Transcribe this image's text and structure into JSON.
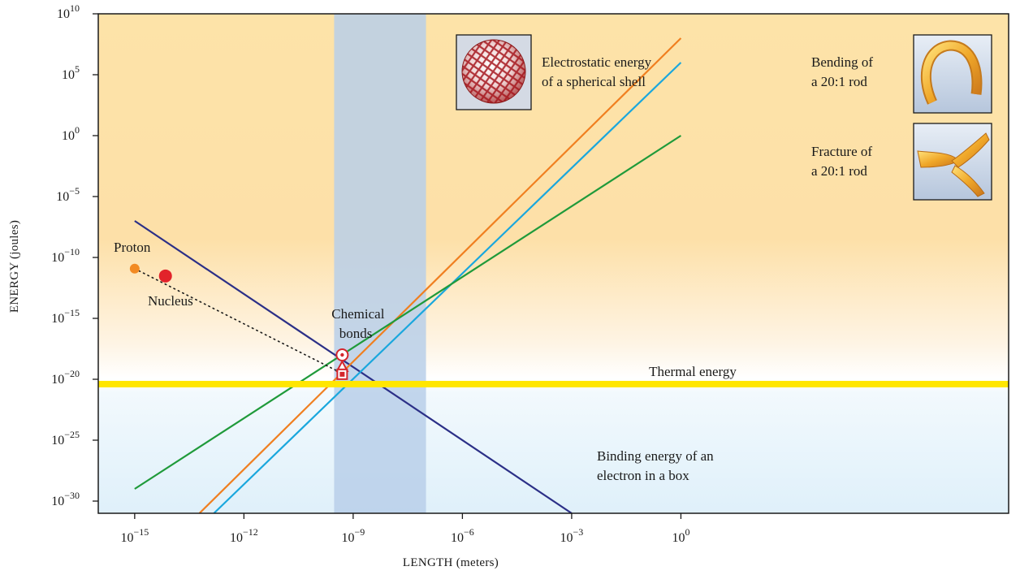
{
  "chart_data": {
    "type": "line",
    "xlabel": "LENGTH (meters)",
    "ylabel": "ENERGY (joules)",
    "x_scale": "log",
    "y_scale": "log",
    "xlim": [
      1e-16,
      1000000000.0
    ],
    "ylim": [
      1e-31,
      10000000000.0
    ],
    "x_ticks": [
      {
        "value": 1e-15,
        "base": "10",
        "exp": "−15"
      },
      {
        "value": 1e-12,
        "base": "10",
        "exp": "−12"
      },
      {
        "value": 1e-09,
        "base": "10",
        "exp": "−9"
      },
      {
        "value": 1e-06,
        "base": "10",
        "exp": "−6"
      },
      {
        "value": 0.001,
        "base": "10",
        "exp": "−3"
      },
      {
        "value": 1,
        "base": "10",
        "exp": "0"
      }
    ],
    "y_ticks": [
      {
        "value": 10000000000.0,
        "base": "10",
        "exp": "10"
      },
      {
        "value": 100000.0,
        "base": "10",
        "exp": "5"
      },
      {
        "value": 1,
        "base": "10",
        "exp": "0"
      },
      {
        "value": 1e-05,
        "base": "10",
        "exp": "−5"
      },
      {
        "value": 1e-10,
        "base": "10",
        "exp": "−10"
      },
      {
        "value": 1e-15,
        "base": "10",
        "exp": "−15"
      },
      {
        "value": 1e-20,
        "base": "10",
        "exp": "−20"
      },
      {
        "value": 1e-25,
        "base": "10",
        "exp": "−25"
      },
      {
        "value": 1e-30,
        "base": "10",
        "exp": "−30"
      }
    ],
    "series": [
      {
        "key": "binding",
        "color": "#2b2f87",
        "x": [
          1e-15,
          0.001
        ],
        "y": [
          1e-07,
          1e-31
        ]
      },
      {
        "key": "electrostatic",
        "color": "#f07f20",
        "x": [
          6e-14,
          1
        ],
        "y": [
          1e-31,
          100000000.0
        ]
      },
      {
        "key": "bending",
        "color": "#1aa7dd",
        "x": [
          1.5e-13,
          1
        ],
        "y": [
          1e-31,
          1000000.0
        ]
      },
      {
        "key": "fracture",
        "color": "#1f9a3a",
        "x": [
          1e-15,
          1
        ],
        "y": [
          1e-29,
          1.0
        ]
      }
    ],
    "thermal_energy": {
      "y": 4e-21,
      "color": "#ffe600",
      "label": "Thermal energy"
    },
    "chemical_band": {
      "x": [
        3e-10,
        1e-07
      ],
      "color": "#b9cfe9"
    },
    "points": [
      {
        "key": "proton",
        "label": "Proton",
        "x": 1e-15,
        "y": 1.2e-11,
        "color": "#f28a23"
      },
      {
        "key": "nucleus",
        "label": "Nucleus",
        "x": 7e-15,
        "y": 3e-12,
        "color": "#e2232a"
      }
    ],
    "chemical_markers": {
      "x": 5e-10,
      "y_circle": 1e-18,
      "y_triangle": 1e-19,
      "y_square": 3e-20,
      "color": "#d4262c"
    },
    "annotations": {
      "electrostatic": [
        "Electrostatic energy",
        "of a spherical shell"
      ],
      "bending": [
        "Bending of",
        "a 20:1 rod"
      ],
      "fracture": [
        "Fracture of",
        "a 20:1 rod"
      ],
      "binding": [
        "Binding energy of an",
        "electron in a box"
      ],
      "chemical": [
        "Chemical",
        "bonds"
      ]
    }
  }
}
